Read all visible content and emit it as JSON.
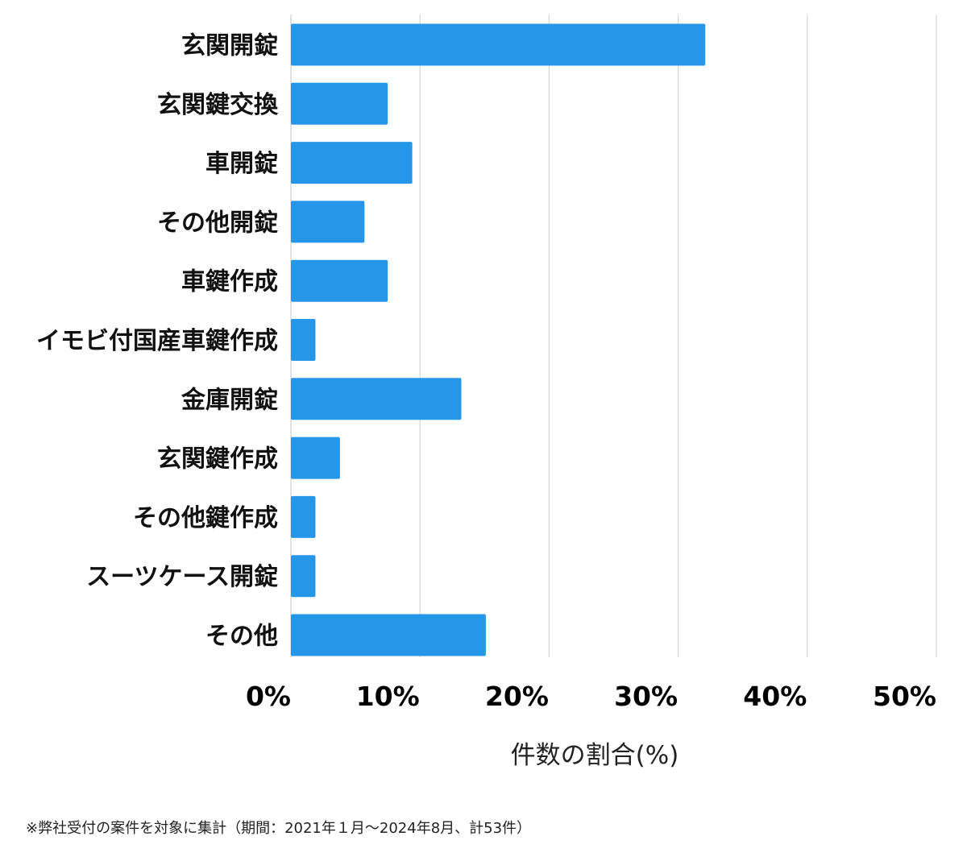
{
  "chart_data": {
    "type": "bar",
    "orientation": "horizontal",
    "categories": [
      "玄関開錠",
      "玄関鍵交換",
      "車開錠",
      "その他開錠",
      "車鍵作成",
      "イモビ付国産車鍵作成",
      "金庫開錠",
      "玄関鍵作成",
      "その他鍵作成",
      "スーツケース開錠",
      "その他"
    ],
    "values": [
      32.1,
      7.5,
      9.4,
      5.7,
      7.5,
      1.9,
      13.2,
      3.8,
      1.9,
      1.9,
      15.1
    ],
    "xlim": [
      0,
      50
    ],
    "xticks": [
      0,
      10,
      20,
      30,
      40,
      50
    ],
    "xtick_labels": [
      "0%",
      "10%",
      "20%",
      "30%",
      "40%",
      "50%"
    ],
    "xlabel": "件数の割合(%)",
    "ylabel": "",
    "title": "",
    "grid": "vertical",
    "bar_color": "#2696e8",
    "grid_color": "#d4d4d4"
  },
  "footnote": "※弊社受付の案件を対象に集計（期間：2021年１月～2024年8月、計53件）"
}
